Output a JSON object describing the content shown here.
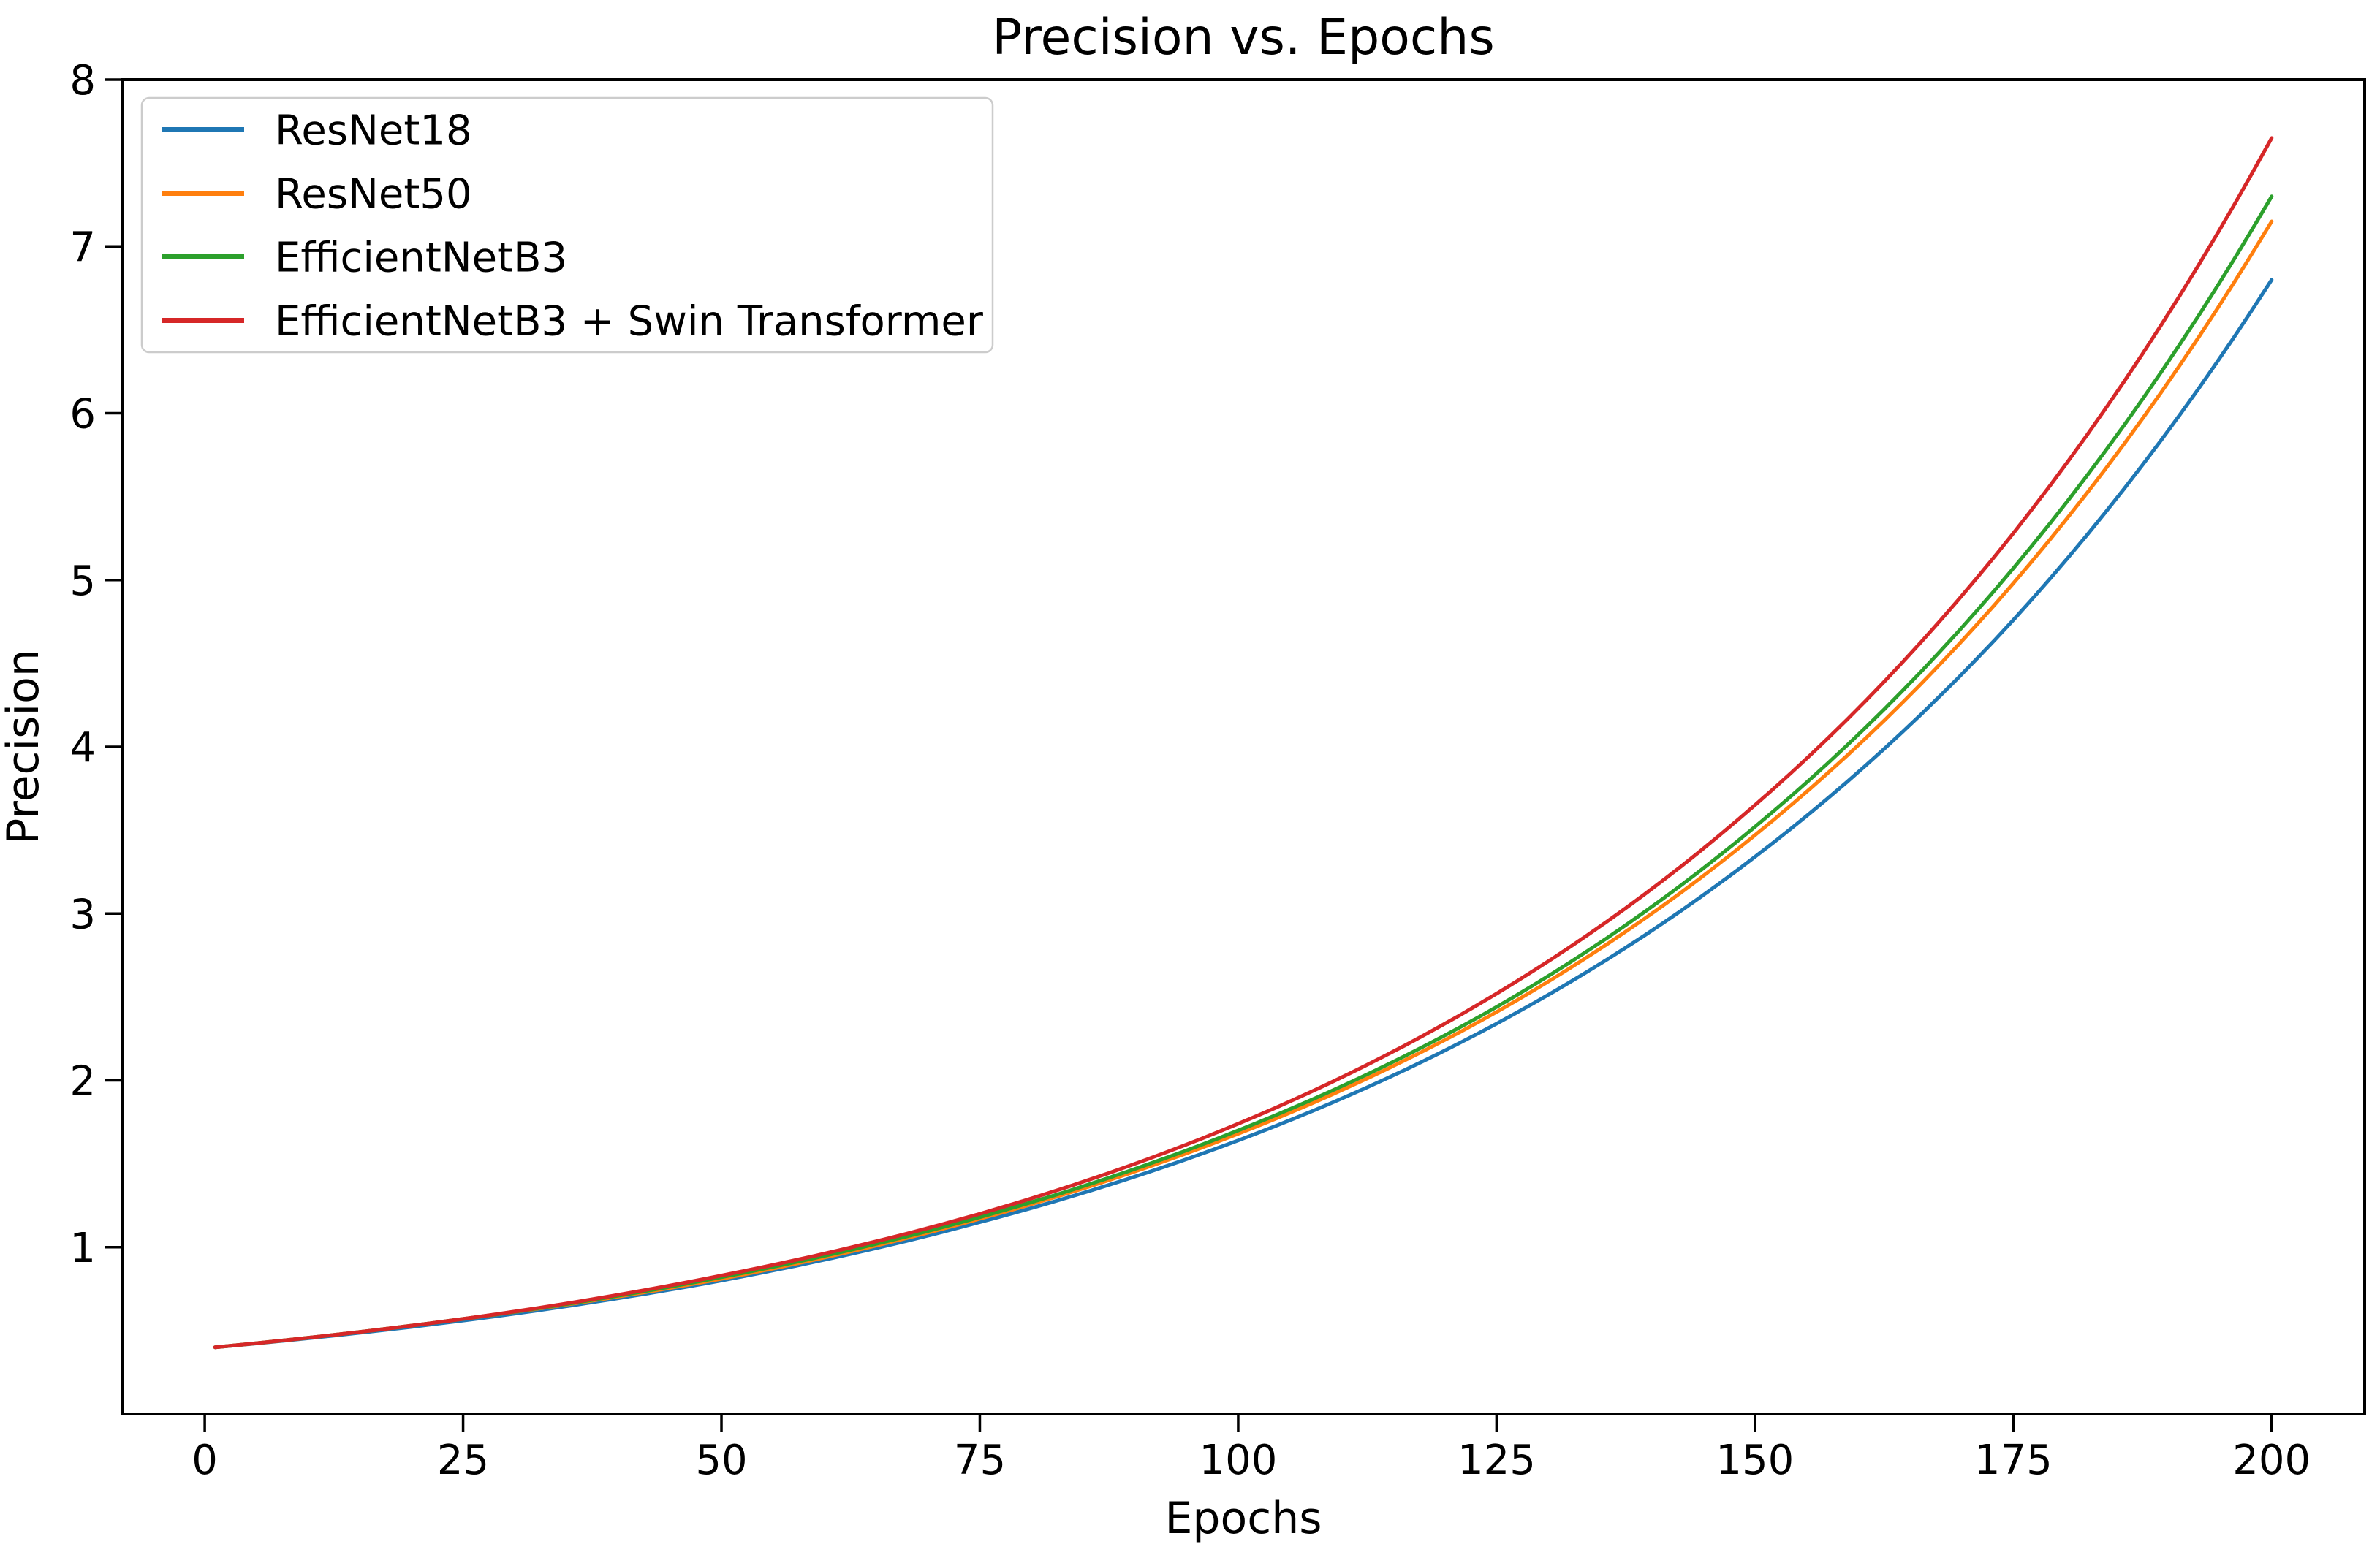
{
  "figure": {
    "background": "#ffffff",
    "plot_background": "#ffffff",
    "spine_color": "#000000",
    "tick_color": "#000000",
    "legend_border_color": "#cccccc",
    "legend_background": "#ffffff"
  },
  "chart_data": {
    "type": "line",
    "title": "Precision vs. Epochs",
    "xlabel": "Epochs",
    "ylabel": "Precision",
    "xlim": [
      -8,
      209
    ],
    "ylim": [
      0,
      8
    ],
    "x_ticks": [
      0,
      25,
      50,
      75,
      100,
      125,
      150,
      175,
      200
    ],
    "y_ticks": [
      1,
      2,
      3,
      4,
      5,
      6,
      7,
      8
    ],
    "grid": false,
    "legend_position": "upper left",
    "interpolation": "exponential",
    "x": [
      1,
      25,
      50,
      75,
      100,
      125,
      150,
      175,
      200
    ],
    "series": [
      {
        "name": "ResNet18",
        "color": "#1f77b4",
        "values": [
          0.4,
          0.56,
          0.8,
          1.15,
          1.64,
          2.34,
          3.34,
          4.76,
          6.8
        ]
      },
      {
        "name": "ResNet50",
        "color": "#ff7f0e",
        "values": [
          0.4,
          0.57,
          0.81,
          1.17,
          1.68,
          2.41,
          3.47,
          4.98,
          7.15
        ]
      },
      {
        "name": "EfficientNetB3",
        "color": "#2ca02c",
        "values": [
          0.4,
          0.57,
          0.82,
          1.18,
          1.7,
          2.44,
          3.52,
          5.07,
          7.3
        ]
      },
      {
        "name": "EfficientNetB3 + Swin Transformer",
        "color": "#d62728",
        "values": [
          0.4,
          0.57,
          0.83,
          1.2,
          1.74,
          2.52,
          3.65,
          5.28,
          7.65
        ]
      }
    ]
  }
}
